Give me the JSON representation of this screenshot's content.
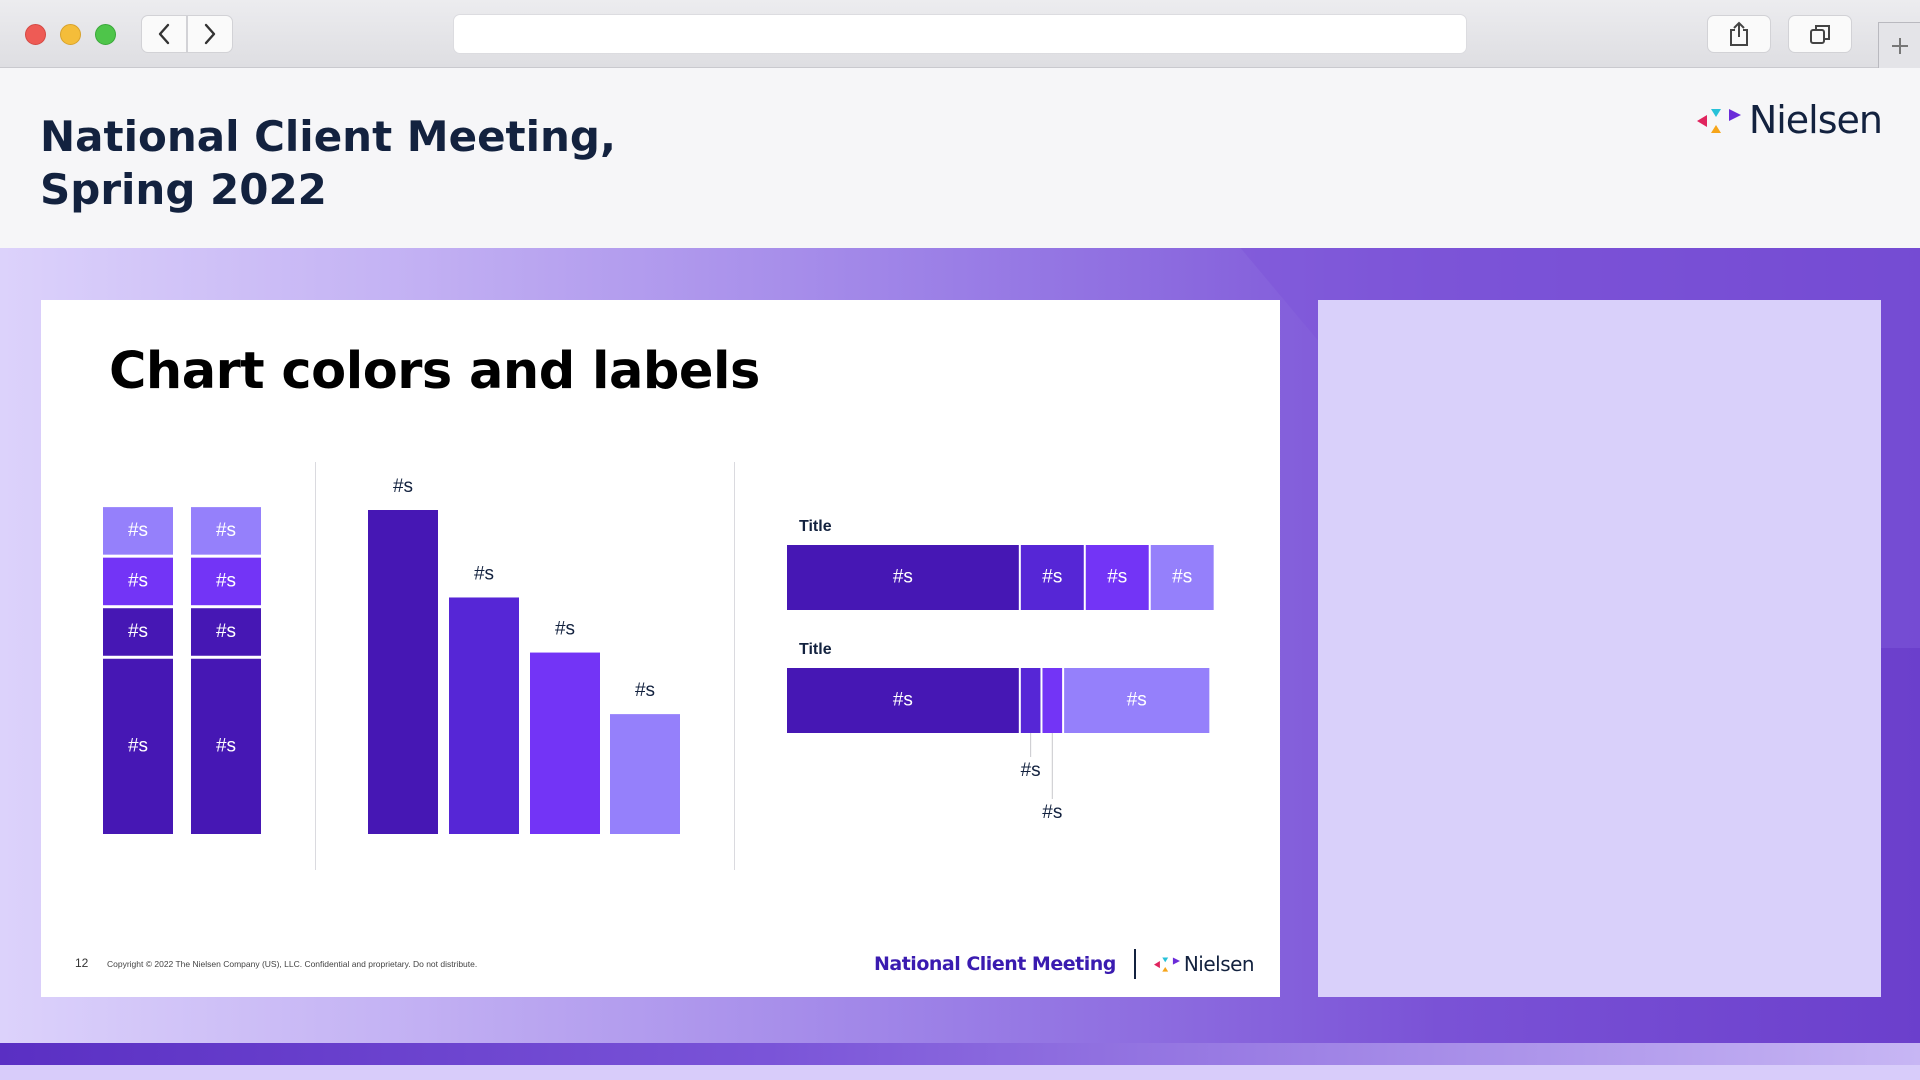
{
  "browser": {
    "url": "",
    "icons": {
      "back": "chevron-left-icon",
      "forward": "chevron-right-icon",
      "share": "share-icon",
      "tabs": "tabs-overview-icon",
      "new_tab": "plus-icon"
    }
  },
  "header": {
    "title": "National Client Meeting,\nSpring 2022",
    "brand": "Nielsen"
  },
  "slide": {
    "heading": "Chart colors and labels",
    "page_number": "12",
    "copyright": "Copyright © 2022 The Nielsen Company (US), LLC. Confidential and proprietary. Do not distribute.",
    "footer_meeting": "National Client Meeting",
    "footer_brand": "Nielsen"
  },
  "colors": {
    "dark": "#4617b4",
    "medium": "#5626d6",
    "bright": "#7334f6",
    "light": "#9580fb",
    "title_navy": "#13223f"
  },
  "chart_data": [
    {
      "type": "bar",
      "stacked": true,
      "categories": [
        "",
        ""
      ],
      "series": [
        {
          "values": [
            52,
            52
          ],
          "color": "dark",
          "labels": [
            "#s",
            "#s"
          ]
        },
        {
          "values": [
            15,
            15
          ],
          "color": "dark",
          "labels": [
            "#s",
            "#s"
          ]
        },
        {
          "values": [
            15,
            15
          ],
          "color": "bright",
          "labels": [
            "#s",
            "#s"
          ]
        },
        {
          "values": [
            15,
            15
          ],
          "color": "light",
          "labels": [
            "#s",
            "#s"
          ]
        }
      ]
    },
    {
      "type": "bar",
      "categories": [
        "",
        "",
        "",
        ""
      ],
      "values": [
        100,
        73,
        56,
        37
      ],
      "colors": [
        "dark",
        "medium",
        "bright",
        "light"
      ],
      "labels": [
        "#s",
        "#s",
        "#s",
        "#s"
      ]
    },
    {
      "type": "bar",
      "orientation": "horizontal",
      "stacked": true,
      "rows": [
        {
          "title": "Title",
          "segments": [
            {
              "value": 54,
              "color": "dark",
              "label": "#s"
            },
            {
              "value": 15,
              "color": "medium",
              "label": "#s"
            },
            {
              "value": 15,
              "color": "bright",
              "label": "#s"
            },
            {
              "value": 15,
              "color": "light",
              "label": "#s"
            }
          ]
        },
        {
          "title": "Title",
          "segments": [
            {
              "value": 54,
              "color": "dark",
              "label": "#s"
            },
            {
              "value": 5,
              "color": "medium",
              "label": "#s",
              "callout": true
            },
            {
              "value": 5,
              "color": "bright",
              "label": "#s",
              "callout": true
            },
            {
              "value": 34,
              "color": "light",
              "label": "#s"
            }
          ]
        }
      ]
    }
  ]
}
